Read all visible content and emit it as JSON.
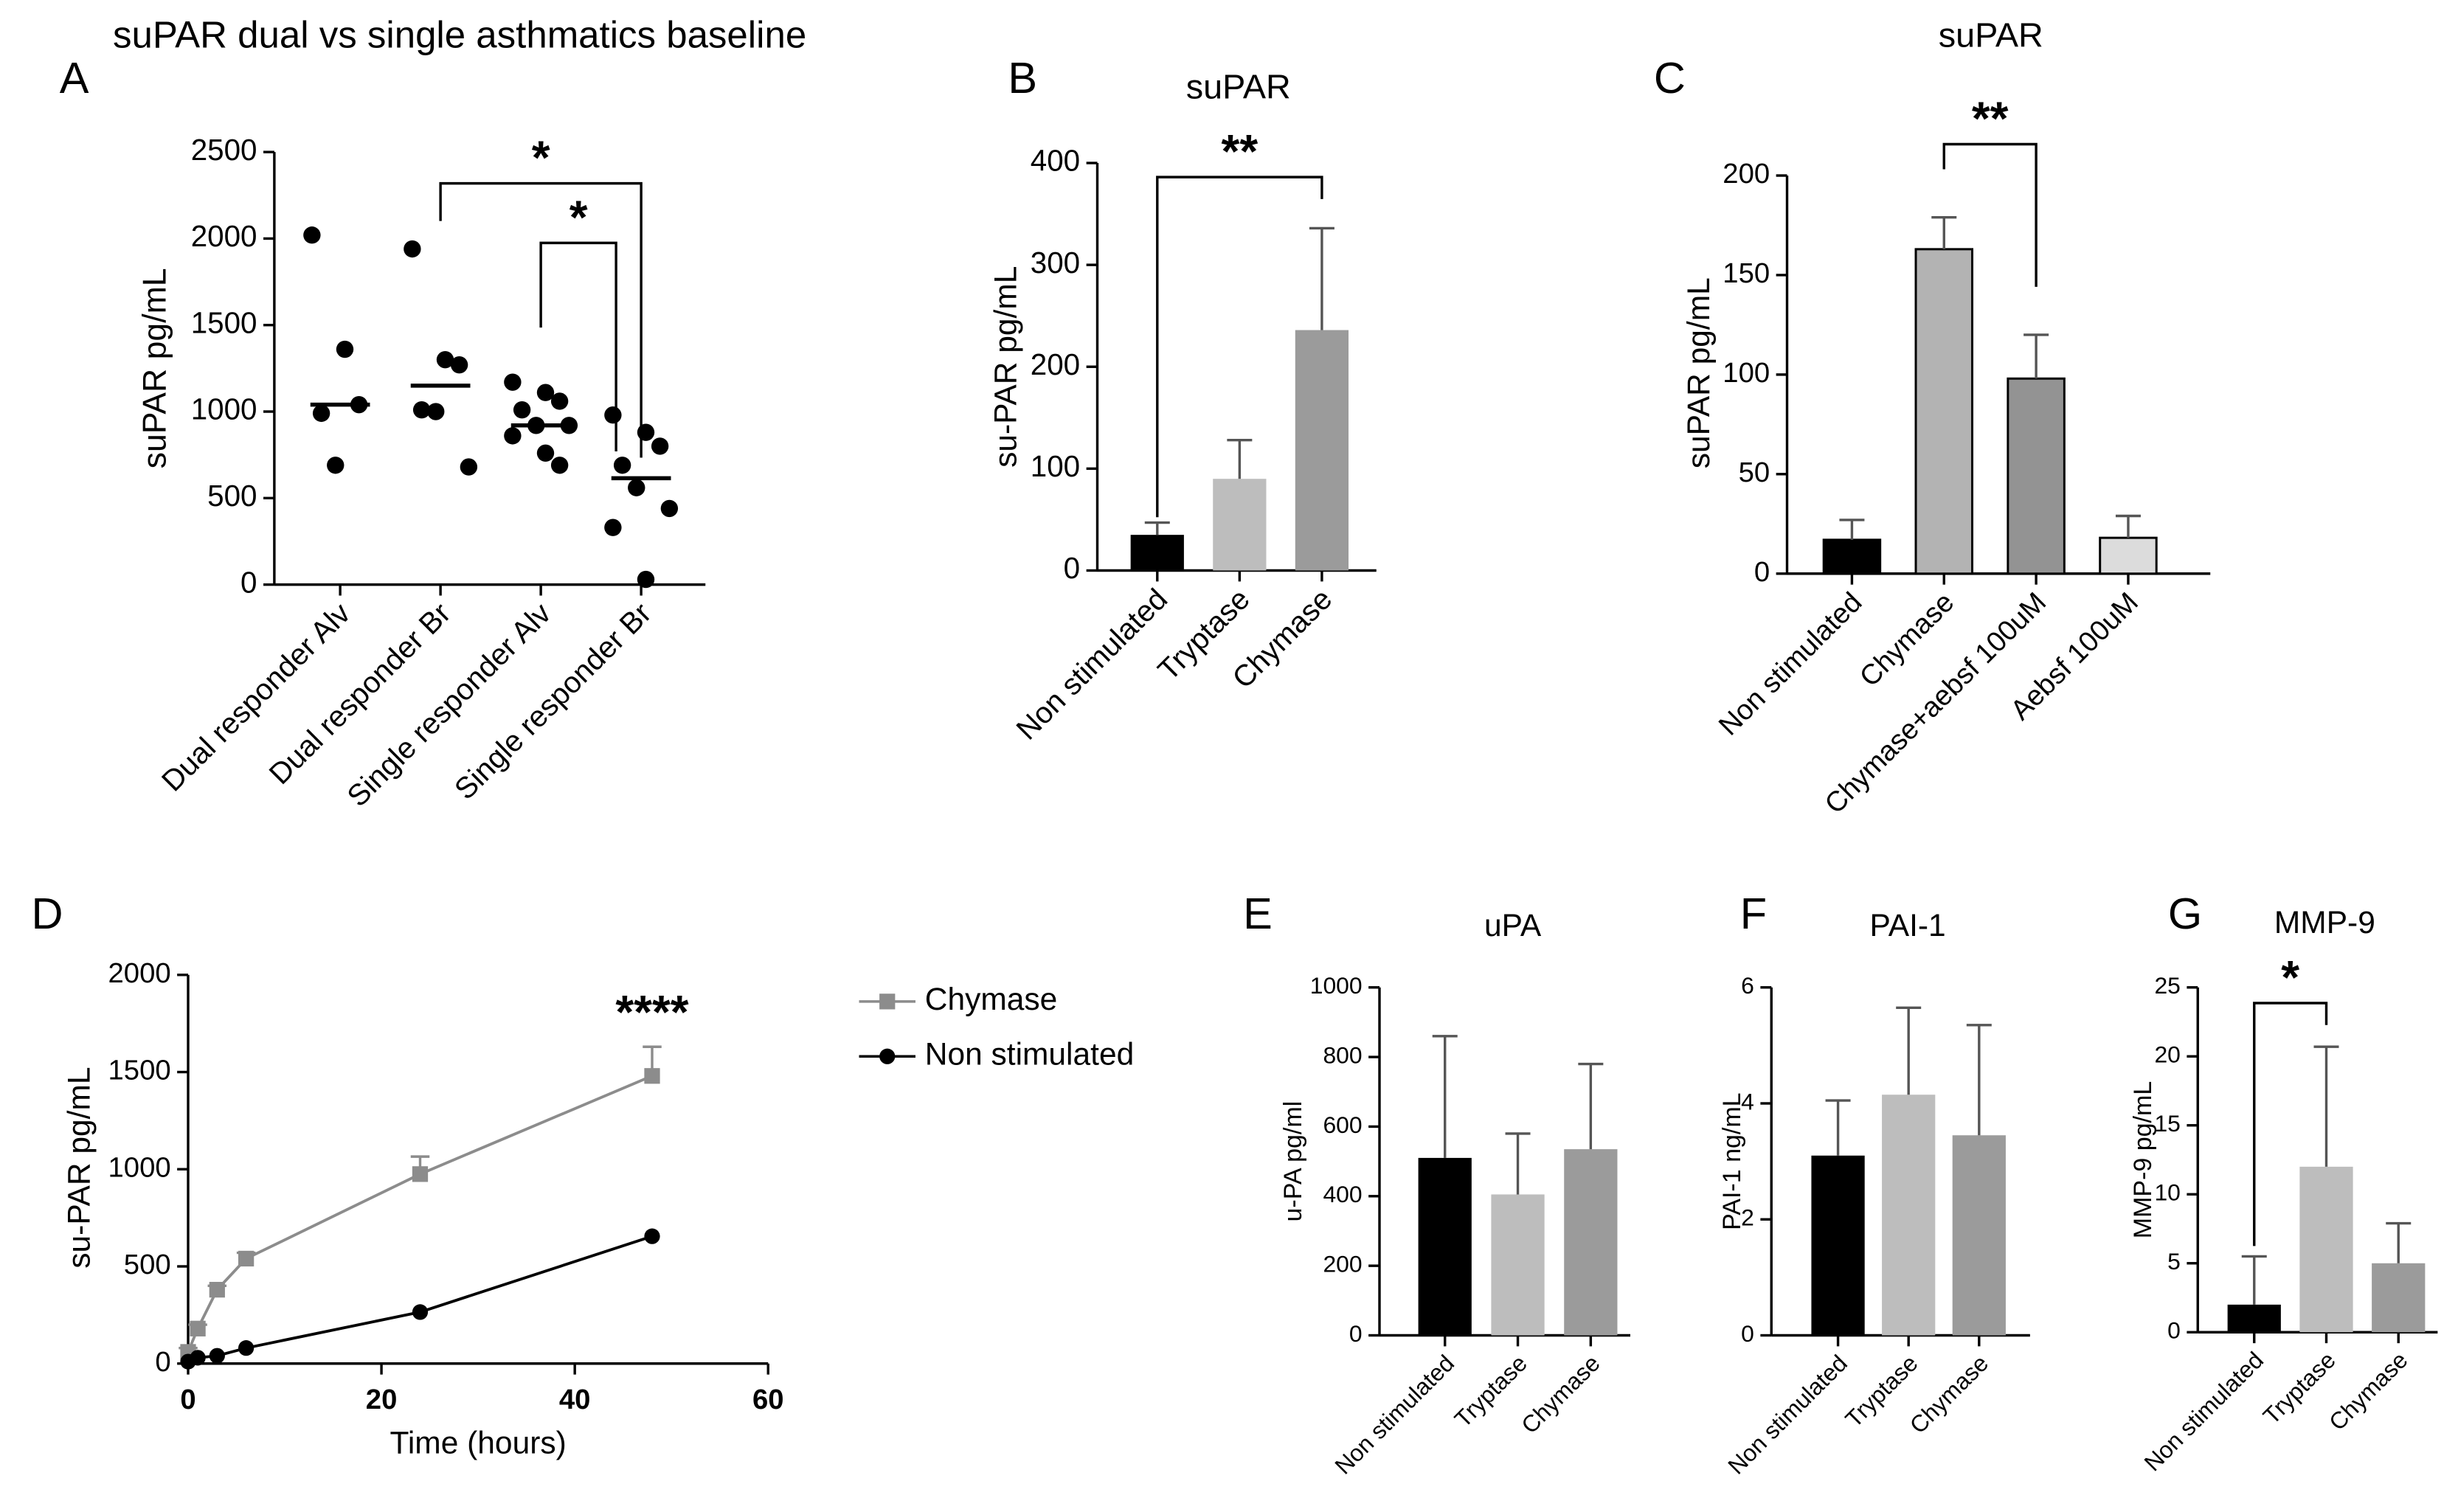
{
  "chart_data": [
    {
      "type": "dot_plot",
      "label": "A",
      "title": "suPAR dual vs single asthmatics baseline",
      "ylabel": "suPAR pg/mL",
      "categories": [
        "Dual responder Alv",
        "Dual responder Br",
        "Single responder Alv",
        "Single responder Br"
      ],
      "points": [
        [
          2020,
          1360,
          1040,
          990,
          690
        ],
        [
          1940,
          1300,
          1270,
          1010,
          1000,
          680
        ],
        [
          1170,
          1110,
          1060,
          1010,
          920,
          920,
          860,
          760,
          690
        ],
        [
          980,
          880,
          800,
          690,
          560,
          440,
          330,
          30
        ]
      ],
      "medians": [
        1040,
        1150,
        920,
        615
      ],
      "color": "#000000",
      "ylim": [
        0,
        2500
      ],
      "yticks": [
        0,
        500,
        1000,
        1500,
        2000,
        2500
      ],
      "annotations": [
        {
          "text": "*",
          "from": 1,
          "to": 3
        },
        {
          "text": "*",
          "from": 2,
          "to": 3
        }
      ]
    },
    {
      "type": "bar",
      "label": "B",
      "title": "suPAR",
      "ylabel": "su-PAR pg/mL",
      "categories": [
        "Non stimulated",
        "Tryptase",
        "Chymase"
      ],
      "values": [
        35,
        90,
        236
      ],
      "errors": [
        12,
        38,
        100
      ],
      "colors": [
        "#000000",
        "#bdbdbd",
        "#9b9b9b"
      ],
      "bar_outline": false,
      "ylim": [
        0,
        400
      ],
      "yticks": [
        0,
        100,
        200,
        300,
        400
      ],
      "annotations": [
        {
          "text": "**",
          "from": 0,
          "to": 2
        }
      ]
    },
    {
      "type": "bar",
      "label": "C",
      "title": "suPAR",
      "ylabel": "suPAR pg/mL",
      "categories": [
        "Non stimulated",
        "Chymase",
        "Chymase+aebsf 100uM",
        "Aebsf 100uM"
      ],
      "values": [
        17,
        163,
        98,
        18
      ],
      "errors": [
        10,
        16,
        22,
        11
      ],
      "colors": [
        "#000000",
        "#b3b3b3",
        "#939393",
        "#dcdcdc"
      ],
      "bar_outline": true,
      "ylim": [
        0,
        200
      ],
      "yticks": [
        0,
        50,
        100,
        150,
        200
      ],
      "annotations": [
        {
          "text": "**",
          "from": 1,
          "to": 2
        }
      ]
    },
    {
      "type": "line",
      "label": "D",
      "xlabel": "Time (hours)",
      "ylabel": "su-PAR pg/mL",
      "xlim": [
        0,
        60
      ],
      "xticks": [
        0,
        20,
        40,
        60
      ],
      "ylim": [
        0,
        2000
      ],
      "yticks": [
        0,
        500,
        1000,
        1500,
        2000
      ],
      "series": [
        {
          "name": "Chymase",
          "color": "#8c8c8c",
          "marker": "square",
          "x": [
            0,
            1,
            3,
            6,
            24,
            48
          ],
          "values": [
            60,
            180,
            380,
            540,
            975,
            1480
          ],
          "errors": [
            20,
            20,
            20,
            30,
            90,
            150
          ]
        },
        {
          "name": "Non stimulated",
          "color": "#000000",
          "marker": "circle",
          "x": [
            0,
            1,
            3,
            6,
            24,
            48
          ],
          "values": [
            10,
            30,
            40,
            80,
            265,
            655
          ]
        }
      ],
      "annotations": [
        {
          "text": "****",
          "x": 48
        }
      ]
    },
    {
      "type": "bar",
      "label": "E",
      "title": "uPA",
      "ylabel": "u-PA pg/ml",
      "categories": [
        "Non stimulated",
        "Tryptase",
        "Chymase"
      ],
      "values": [
        510,
        405,
        535
      ],
      "errors": [
        350,
        175,
        245
      ],
      "colors": [
        "#000000",
        "#bdbdbd",
        "#9b9b9b"
      ],
      "bar_outline": false,
      "ylim": [
        0,
        1000
      ],
      "yticks": [
        0,
        200,
        400,
        600,
        800,
        1000
      ]
    },
    {
      "type": "bar",
      "label": "F",
      "title": "PAI-1",
      "ylabel": "PAI-1 ng/mL",
      "categories": [
        "Non stimulated",
        "Tryptase",
        "Chymase"
      ],
      "values": [
        3.1,
        4.15,
        3.45
      ],
      "errors": [
        0.95,
        1.5,
        1.9
      ],
      "colors": [
        "#000000",
        "#bdbdbd",
        "#9b9b9b"
      ],
      "bar_outline": false,
      "ylim": [
        0,
        6
      ],
      "yticks": [
        0,
        2,
        4,
        6
      ]
    },
    {
      "type": "bar",
      "label": "G",
      "title": "MMP-9",
      "ylabel": "MMP-9 pg/mL",
      "categories": [
        "Non stimulated",
        "Tryptase",
        "Chymase"
      ],
      "values": [
        2,
        12,
        5
      ],
      "errors": [
        3.5,
        8.7,
        2.9
      ],
      "colors": [
        "#000000",
        "#bdbdbd",
        "#9b9b9b"
      ],
      "bar_outline": false,
      "ylim": [
        0,
        25
      ],
      "yticks": [
        0,
        5,
        10,
        15,
        20,
        25
      ],
      "annotations": [
        {
          "text": "*",
          "from": 0,
          "to": 1
        }
      ]
    }
  ]
}
